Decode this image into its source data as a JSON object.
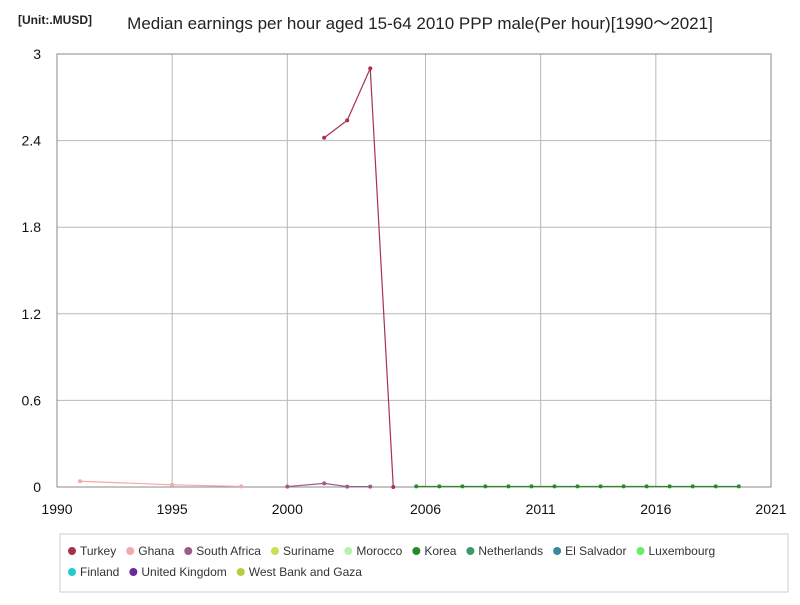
{
  "chart_data": {
    "type": "line",
    "unit_label": "[Unit:.MUSD]",
    "title": "Median earnings per hour aged 15-64 2010 PPP male(Per hour)[1990～2021]",
    "xlabel": "",
    "ylabel": "",
    "xlim": [
      1990,
      2021
    ],
    "ylim": [
      0,
      3
    ],
    "xticks": [
      1990,
      1995,
      2000,
      2006,
      2011,
      2016,
      2021
    ],
    "xtick_labels": [
      "1990",
      "1995",
      "2000",
      "2006",
      "2011",
      "2016",
      "2021"
    ],
    "yticks": [
      0,
      0.6,
      1.2,
      1.8,
      2.4,
      3
    ],
    "ytick_labels": [
      "0",
      "0.6",
      "1.2",
      "1.8",
      "2.4",
      "3"
    ],
    "grid": true,
    "legend_position": "bottom",
    "series": [
      {
        "name": "Turkey",
        "color": "#a8324e",
        "points": [
          [
            2001.6,
            2.42
          ],
          [
            2002.6,
            2.54
          ],
          [
            2003.6,
            2.9
          ],
          [
            2004.6,
            0.0
          ]
        ]
      },
      {
        "name": "Ghana",
        "color": "#f2a9a9",
        "points": [
          [
            1991,
            0.04
          ],
          [
            1995,
            0.015
          ],
          [
            1998,
            0.004
          ]
        ]
      },
      {
        "name": "South Africa",
        "color": "#9c5a8a",
        "points": [
          [
            2000,
            0.003
          ],
          [
            2001.6,
            0.025
          ],
          [
            2002.6,
            0.003
          ],
          [
            2003.6,
            0.003
          ]
        ]
      },
      {
        "name": "Suriname",
        "color": "#c5e05a",
        "points": []
      },
      {
        "name": "Morocco",
        "color": "#b9f0b0",
        "points": []
      },
      {
        "name": "Korea",
        "color": "#2a8a2a",
        "points": [
          [
            2005.6,
            0.004
          ],
          [
            2006.6,
            0.004
          ],
          [
            2007.6,
            0.004
          ],
          [
            2008.6,
            0.004
          ],
          [
            2009.6,
            0.004
          ],
          [
            2010.6,
            0.004
          ],
          [
            2011.6,
            0.004
          ],
          [
            2012.6,
            0.004
          ],
          [
            2013.6,
            0.004
          ],
          [
            2014.6,
            0.004
          ],
          [
            2015.6,
            0.004
          ],
          [
            2016.6,
            0.004
          ],
          [
            2017.6,
            0.004
          ],
          [
            2018.6,
            0.004
          ],
          [
            2019.6,
            0.004
          ]
        ]
      },
      {
        "name": "Netherlands",
        "color": "#3a9a6a",
        "points": []
      },
      {
        "name": "El Salvador",
        "color": "#3a8a9a",
        "points": []
      },
      {
        "name": "Luxembourg",
        "color": "#66ee66",
        "points": []
      },
      {
        "name": "Finland",
        "color": "#22cccc",
        "points": []
      },
      {
        "name": "United Kingdom",
        "color": "#6a2a9a",
        "points": []
      },
      {
        "name": "West Bank and Gaza",
        "color": "#b0d040",
        "points": []
      }
    ]
  }
}
